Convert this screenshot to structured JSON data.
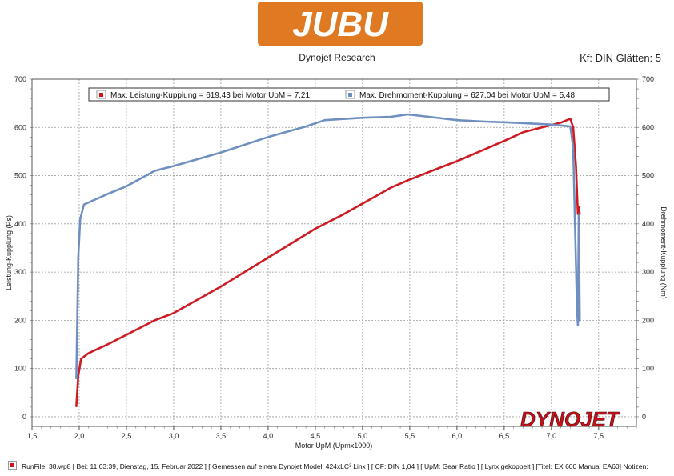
{
  "header": {
    "brand": "JUBU",
    "subtitle": "Dynojet Research",
    "settings": "Kf: DIN Glätten: 5",
    "brand_color": "#e07a22"
  },
  "footer": {
    "run_info": "RunFile_38.wp8 [ Bei: 11:03:39, Dienstag, 15. Februar 2022 ] [ Gemessen auf einem Dynojet Modell 424xLC² Linx ] [ CF: DIN 1,04 ] [ UpM: Gear Ratio ] [ Lynx gekoppelt ] [Titel: EX 600 Manual EA60]  Notizen:"
  },
  "watermark": "DYNOJET",
  "chart_data": {
    "type": "line",
    "xlabel": "Motor UpM (Upmx1000)",
    "ylabel_left": "Leistung-Kupplung (Ps)",
    "ylabel_right": "Drehmoment-Kupplung (Nm)",
    "xlim": [
      1.5,
      7.9
    ],
    "ylim": [
      -20,
      700
    ],
    "x_ticks": [
      "1,5",
      "2,0",
      "2,5",
      "3,0",
      "3,5",
      "4,0",
      "4,5",
      "5,0",
      "5,5",
      "6,0",
      "6,5",
      "7,0",
      "7,5"
    ],
    "y_ticks": [
      "0",
      "100",
      "200",
      "300",
      "400",
      "500",
      "600",
      "700"
    ],
    "grid": true,
    "legend_position": "top",
    "series": [
      {
        "name": "Max. Leistung-Kupplung = 619,43 bei Motor UpM = 7,21",
        "color": "#cf1a22",
        "points": [
          [
            1.97,
            22
          ],
          [
            1.99,
            85
          ],
          [
            2.02,
            120
          ],
          [
            2.1,
            132
          ],
          [
            2.3,
            150
          ],
          [
            2.5,
            170
          ],
          [
            2.8,
            200
          ],
          [
            3.0,
            215
          ],
          [
            3.5,
            270
          ],
          [
            4.0,
            330
          ],
          [
            4.5,
            390
          ],
          [
            4.8,
            420
          ],
          [
            5.0,
            442
          ],
          [
            5.3,
            475
          ],
          [
            5.5,
            492
          ],
          [
            5.8,
            515
          ],
          [
            6.0,
            530
          ],
          [
            6.5,
            572
          ],
          [
            6.7,
            590
          ],
          [
            7.0,
            605
          ],
          [
            7.1,
            610
          ],
          [
            7.2,
            618
          ],
          [
            7.23,
            600
          ],
          [
            7.26,
            520
          ],
          [
            7.28,
            420
          ],
          [
            7.29,
            435
          ],
          [
            7.3,
            420
          ]
        ]
      },
      {
        "name": "Max. Drehmoment-Kupplung = 627,04 bei Motor UpM = 5,48",
        "color": "#6f8fc0",
        "points": [
          [
            1.97,
            80
          ],
          [
            1.99,
            330
          ],
          [
            2.01,
            410
          ],
          [
            2.05,
            440
          ],
          [
            2.3,
            462
          ],
          [
            2.5,
            478
          ],
          [
            2.8,
            510
          ],
          [
            3.0,
            520
          ],
          [
            3.5,
            548
          ],
          [
            4.0,
            580
          ],
          [
            4.4,
            602
          ],
          [
            4.6,
            615
          ],
          [
            5.0,
            620
          ],
          [
            5.3,
            622
          ],
          [
            5.48,
            627
          ],
          [
            5.7,
            622
          ],
          [
            6.0,
            615
          ],
          [
            6.3,
            612
          ],
          [
            6.6,
            610
          ],
          [
            7.0,
            606
          ],
          [
            7.2,
            602
          ],
          [
            7.23,
            560
          ],
          [
            7.25,
            400
          ],
          [
            7.27,
            230
          ],
          [
            7.28,
            190
          ],
          [
            7.29,
            420
          ],
          [
            7.3,
            200
          ]
        ]
      }
    ]
  }
}
